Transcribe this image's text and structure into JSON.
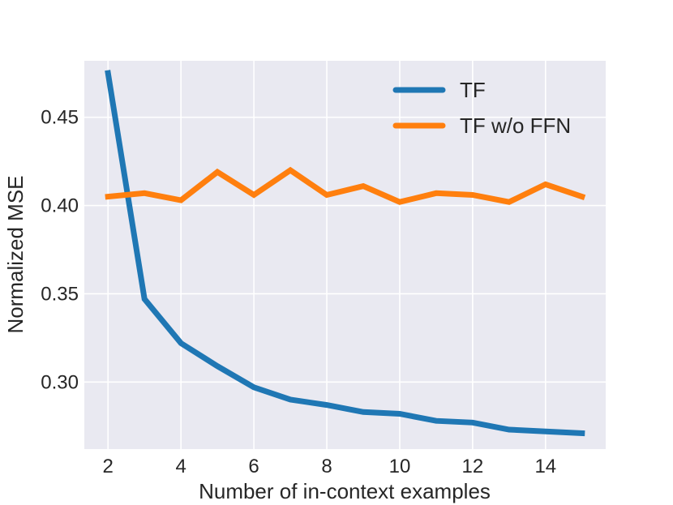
{
  "chart_data": {
    "type": "line",
    "xlabel": "Number of in-context examples",
    "ylabel": "Normalized MSE",
    "xlim": [
      1.35,
      15.65
    ],
    "ylim": [
      0.262,
      0.482
    ],
    "xticks": [
      2,
      4,
      6,
      8,
      10,
      12,
      14
    ],
    "yticks": [
      0.3,
      0.35,
      0.4,
      0.45
    ],
    "ytick_labels": [
      "0.30",
      "0.35",
      "0.40",
      "0.45"
    ],
    "grid": true,
    "legend_position": "top-right",
    "x": [
      2,
      3,
      4,
      5,
      6,
      7,
      8,
      9,
      10,
      11,
      12,
      13,
      14,
      15
    ],
    "series": [
      {
        "name": "TF",
        "color": "#1f77b4",
        "values": [
          0.475,
          0.347,
          0.322,
          0.309,
          0.297,
          0.29,
          0.287,
          0.283,
          0.282,
          0.278,
          0.277,
          0.273,
          0.272,
          0.271
        ]
      },
      {
        "name": "TF w/o FFN",
        "color": "#ff7f0e",
        "values": [
          0.405,
          0.407,
          0.403,
          0.419,
          0.406,
          0.42,
          0.406,
          0.411,
          0.402,
          0.407,
          0.406,
          0.402,
          0.412,
          0.405
        ]
      }
    ],
    "colors": {
      "plot_background": "#e9e9f1",
      "grid": "#ffffff"
    }
  }
}
